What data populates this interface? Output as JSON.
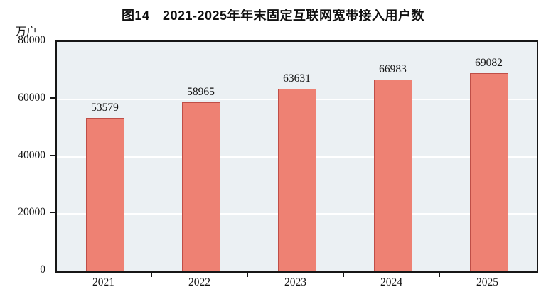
{
  "title": "图14　2021-2025年年末固定互联网宽带接入用户数",
  "unit_label": "万户",
  "chart_data": {
    "type": "bar",
    "title": "图14　2021-2025年年末固定互联网宽带接入用户数",
    "ylabel": "万户",
    "xlabel": "",
    "categories": [
      "2021",
      "2022",
      "2023",
      "2024",
      "2025"
    ],
    "values": [
      53579,
      58965,
      63631,
      66983,
      69082
    ],
    "data_labels": [
      "53579",
      "58965",
      "63631",
      "66983",
      "69082"
    ],
    "ylim": [
      0,
      80000
    ],
    "yticks": [
      0,
      20000,
      40000,
      60000,
      80000
    ],
    "grid": "horizontal",
    "legend": "none",
    "colors": {
      "bar_fill": "#ee8173",
      "bar_border": "#bf4e47",
      "plot_background": "#ebf0f3",
      "gridline": "#ffffff",
      "axis": "#161616",
      "text": "#111111"
    }
  }
}
